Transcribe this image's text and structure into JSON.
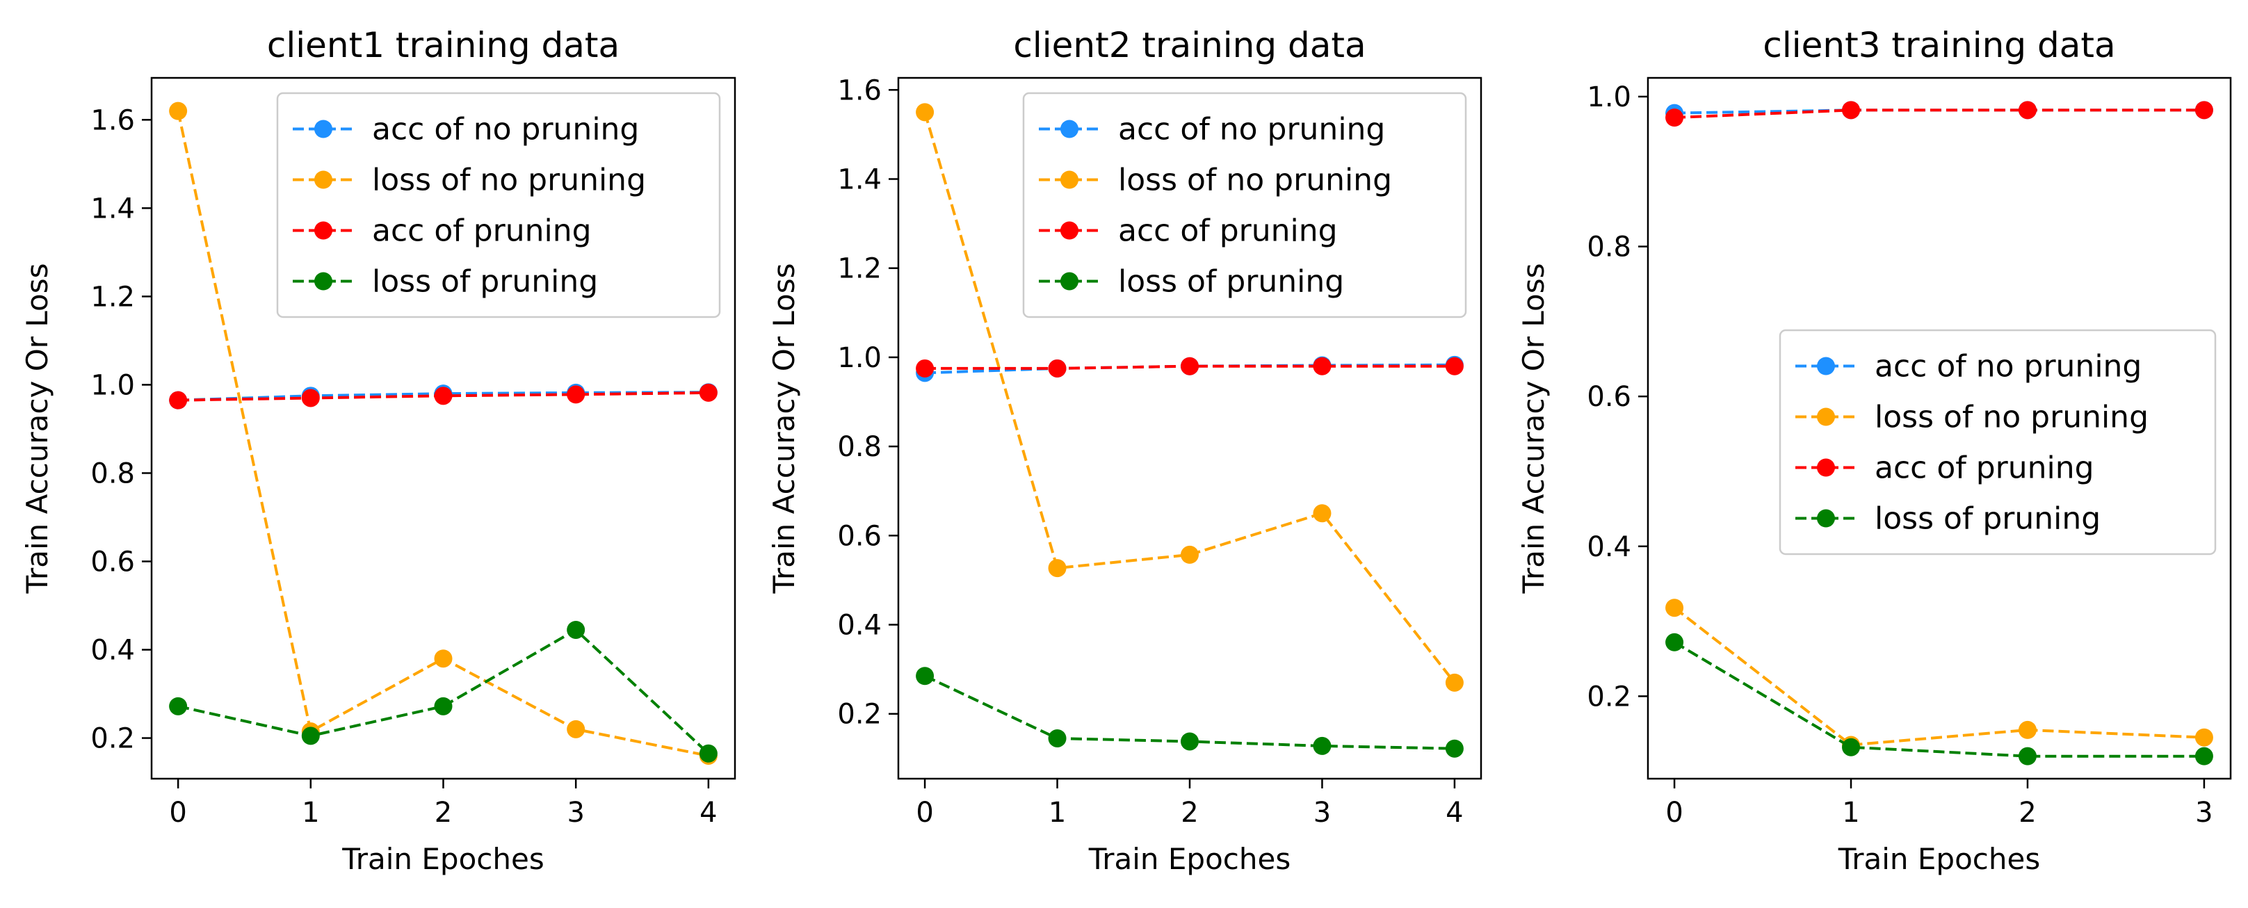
{
  "chart_data": [
    {
      "type": "line",
      "title": "client1 training data",
      "xlabel": "Train Epoches",
      "ylabel": "Train Accuracy Or Loss",
      "x": [
        0,
        1,
        2,
        3,
        4
      ],
      "xlim": [
        -0.2,
        4.2
      ],
      "ylim": [
        0.108,
        1.695
      ],
      "xticks": [
        0,
        1,
        2,
        3,
        4
      ],
      "xtick_labels": [
        "0",
        "1",
        "2",
        "3",
        "4"
      ],
      "yticks": [
        0.2,
        0.4,
        0.6,
        0.8,
        1.0,
        1.2,
        1.4,
        1.6
      ],
      "ytick_labels": [
        "0.2",
        "0.4",
        "0.6",
        "0.8",
        "1.0",
        "1.2",
        "1.4",
        "1.6"
      ],
      "legend_position": "top-right",
      "series": [
        {
          "name": "acc of no pruning",
          "color": "#1e90ff",
          "values": [
            0.965,
            0.975,
            0.98,
            0.982,
            0.983
          ]
        },
        {
          "name": "loss of no pruning",
          "color": "#ffa500",
          "values": [
            1.62,
            0.215,
            0.38,
            0.22,
            0.16
          ]
        },
        {
          "name": "acc of pruning",
          "color": "#ff0000",
          "values": [
            0.965,
            0.97,
            0.975,
            0.978,
            0.982
          ]
        },
        {
          "name": "loss of pruning",
          "color": "#008000",
          "values": [
            0.272,
            0.205,
            0.272,
            0.445,
            0.165
          ]
        }
      ]
    },
    {
      "type": "line",
      "title": "client2 training data",
      "xlabel": "Train Epoches",
      "ylabel": "Train Accuracy Or Loss",
      "x": [
        0,
        1,
        2,
        3,
        4
      ],
      "xlim": [
        -0.2,
        4.2
      ],
      "ylim": [
        0.0545,
        1.627
      ],
      "xticks": [
        0,
        1,
        2,
        3,
        4
      ],
      "xtick_labels": [
        "0",
        "1",
        "2",
        "3",
        "4"
      ],
      "yticks": [
        0.2,
        0.4,
        0.6,
        0.8,
        1.0,
        1.2,
        1.4,
        1.6
      ],
      "ytick_labels": [
        "0.2",
        "0.4",
        "0.6",
        "0.8",
        "1.0",
        "1.2",
        "1.4",
        "1.6"
      ],
      "legend_position": "top-right",
      "series": [
        {
          "name": "acc of no pruning",
          "color": "#1e90ff",
          "values": [
            0.965,
            0.975,
            0.98,
            0.982,
            0.983
          ]
        },
        {
          "name": "loss of no pruning",
          "color": "#ffa500",
          "values": [
            1.55,
            0.527,
            0.557,
            0.65,
            0.27
          ]
        },
        {
          "name": "acc of pruning",
          "color": "#ff0000",
          "values": [
            0.975,
            0.975,
            0.98,
            0.98,
            0.98
          ]
        },
        {
          "name": "loss of pruning",
          "color": "#008000",
          "values": [
            0.285,
            0.145,
            0.138,
            0.128,
            0.122
          ]
        }
      ]
    },
    {
      "type": "line",
      "title": "client3 training data",
      "xlabel": "Train Epoches",
      "ylabel": "Train Accuracy Or Loss",
      "x": [
        0,
        1,
        2,
        3
      ],
      "xlim": [
        -0.15,
        3.15
      ],
      "ylim": [
        0.09,
        1.025
      ],
      "xticks": [
        0,
        1,
        2,
        3
      ],
      "xtick_labels": [
        "0",
        "1",
        "2",
        "3"
      ],
      "yticks": [
        0.2,
        0.4,
        0.6,
        0.8,
        1.0
      ],
      "ytick_labels": [
        "0.2",
        "0.4",
        "0.6",
        "0.8",
        "1.0"
      ],
      "legend_position": "center-right",
      "series": [
        {
          "name": "acc of no pruning",
          "color": "#1e90ff",
          "values": [
            0.978,
            0.982,
            0.982,
            0.982
          ]
        },
        {
          "name": "loss of no pruning",
          "color": "#ffa500",
          "values": [
            0.318,
            0.135,
            0.155,
            0.145
          ]
        },
        {
          "name": "acc of pruning",
          "color": "#ff0000",
          "values": [
            0.972,
            0.982,
            0.982,
            0.982
          ]
        },
        {
          "name": "loss of pruning",
          "color": "#008000",
          "values": [
            0.272,
            0.132,
            0.12,
            0.12
          ]
        }
      ]
    }
  ]
}
